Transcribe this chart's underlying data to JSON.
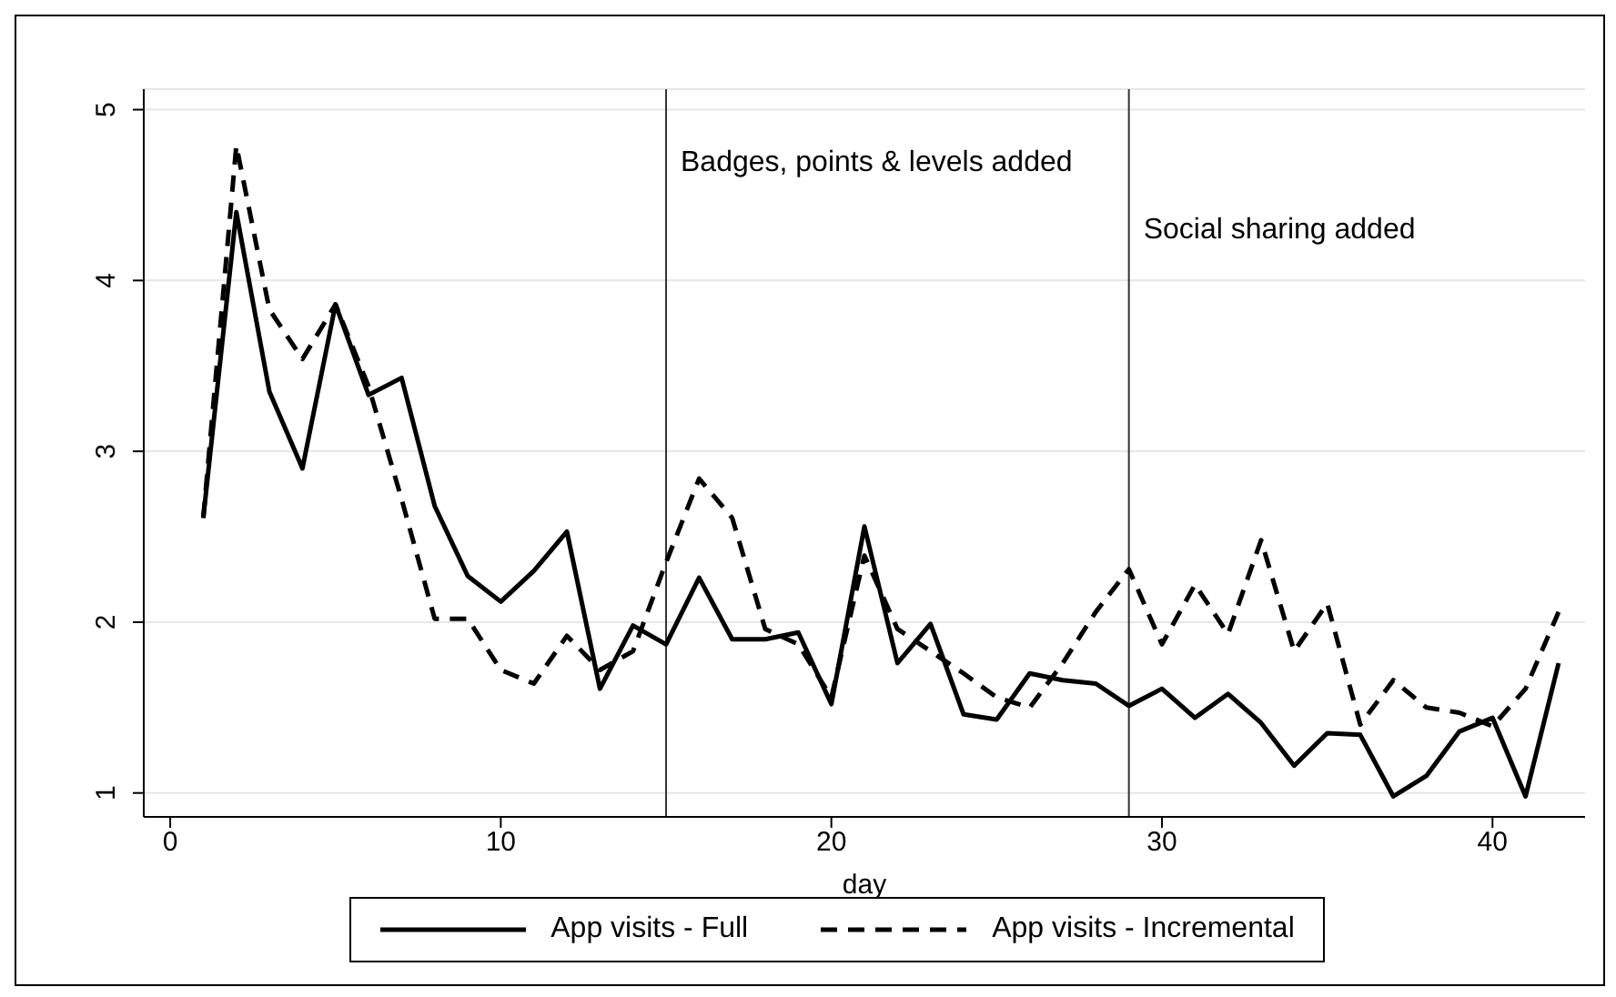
{
  "chart_data": {
    "type": "line",
    "xlabel": "day",
    "x": [
      1,
      2,
      3,
      4,
      5,
      6,
      7,
      8,
      9,
      10,
      11,
      12,
      13,
      14,
      15,
      16,
      17,
      18,
      19,
      20,
      21,
      22,
      23,
      24,
      25,
      26,
      27,
      28,
      29,
      30,
      31,
      32,
      33,
      34,
      35,
      36,
      37,
      38,
      39,
      40,
      41,
      42
    ],
    "series": [
      {
        "name": "App visits - Full",
        "color": "#000000",
        "line_style": "solid",
        "values": [
          2.61,
          4.4,
          3.35,
          2.9,
          3.86,
          3.33,
          3.43,
          2.68,
          2.27,
          2.12,
          2.3,
          2.53,
          1.61,
          1.98,
          1.87,
          2.26,
          1.9,
          1.9,
          1.94,
          1.52,
          2.56,
          1.76,
          1.99,
          1.46,
          1.43,
          1.7,
          1.66,
          1.64,
          1.51,
          1.61,
          1.44,
          1.58,
          1.41,
          1.16,
          1.35,
          1.34,
          0.98,
          1.1,
          1.36,
          1.44,
          0.98,
          1.76
        ]
      },
      {
        "name": "App visits - Incremental",
        "color": "#000000",
        "line_style": "dashed",
        "values": [
          2.61,
          4.79,
          3.83,
          3.54,
          3.86,
          3.38,
          2.72,
          2.02,
          2.02,
          1.72,
          1.64,
          1.92,
          1.72,
          1.83,
          2.35,
          2.84,
          2.61,
          1.96,
          1.87,
          1.56,
          2.39,
          1.96,
          1.83,
          1.7,
          1.56,
          1.5,
          1.76,
          2.06,
          2.31,
          1.87,
          2.22,
          1.93,
          2.48,
          1.83,
          2.11,
          1.4,
          1.66,
          1.5,
          1.47,
          1.39,
          1.61,
          2.06
        ]
      }
    ],
    "xlim": [
      -0.8,
      42.8
    ],
    "xticks": [
      0,
      10,
      20,
      30,
      40
    ],
    "ylim": [
      0.86,
      5.12
    ],
    "yticks": [
      1,
      2,
      3,
      4,
      5
    ],
    "grid": "y",
    "legend": "bottom",
    "marker": "none",
    "ref_lines": [
      {
        "axis": "x",
        "value": 15,
        "label": "Badges, points & levels added",
        "color": "#333333"
      },
      {
        "axis": "x",
        "value": 29,
        "label": "Social sharing added",
        "color": "#333333"
      }
    ]
  }
}
